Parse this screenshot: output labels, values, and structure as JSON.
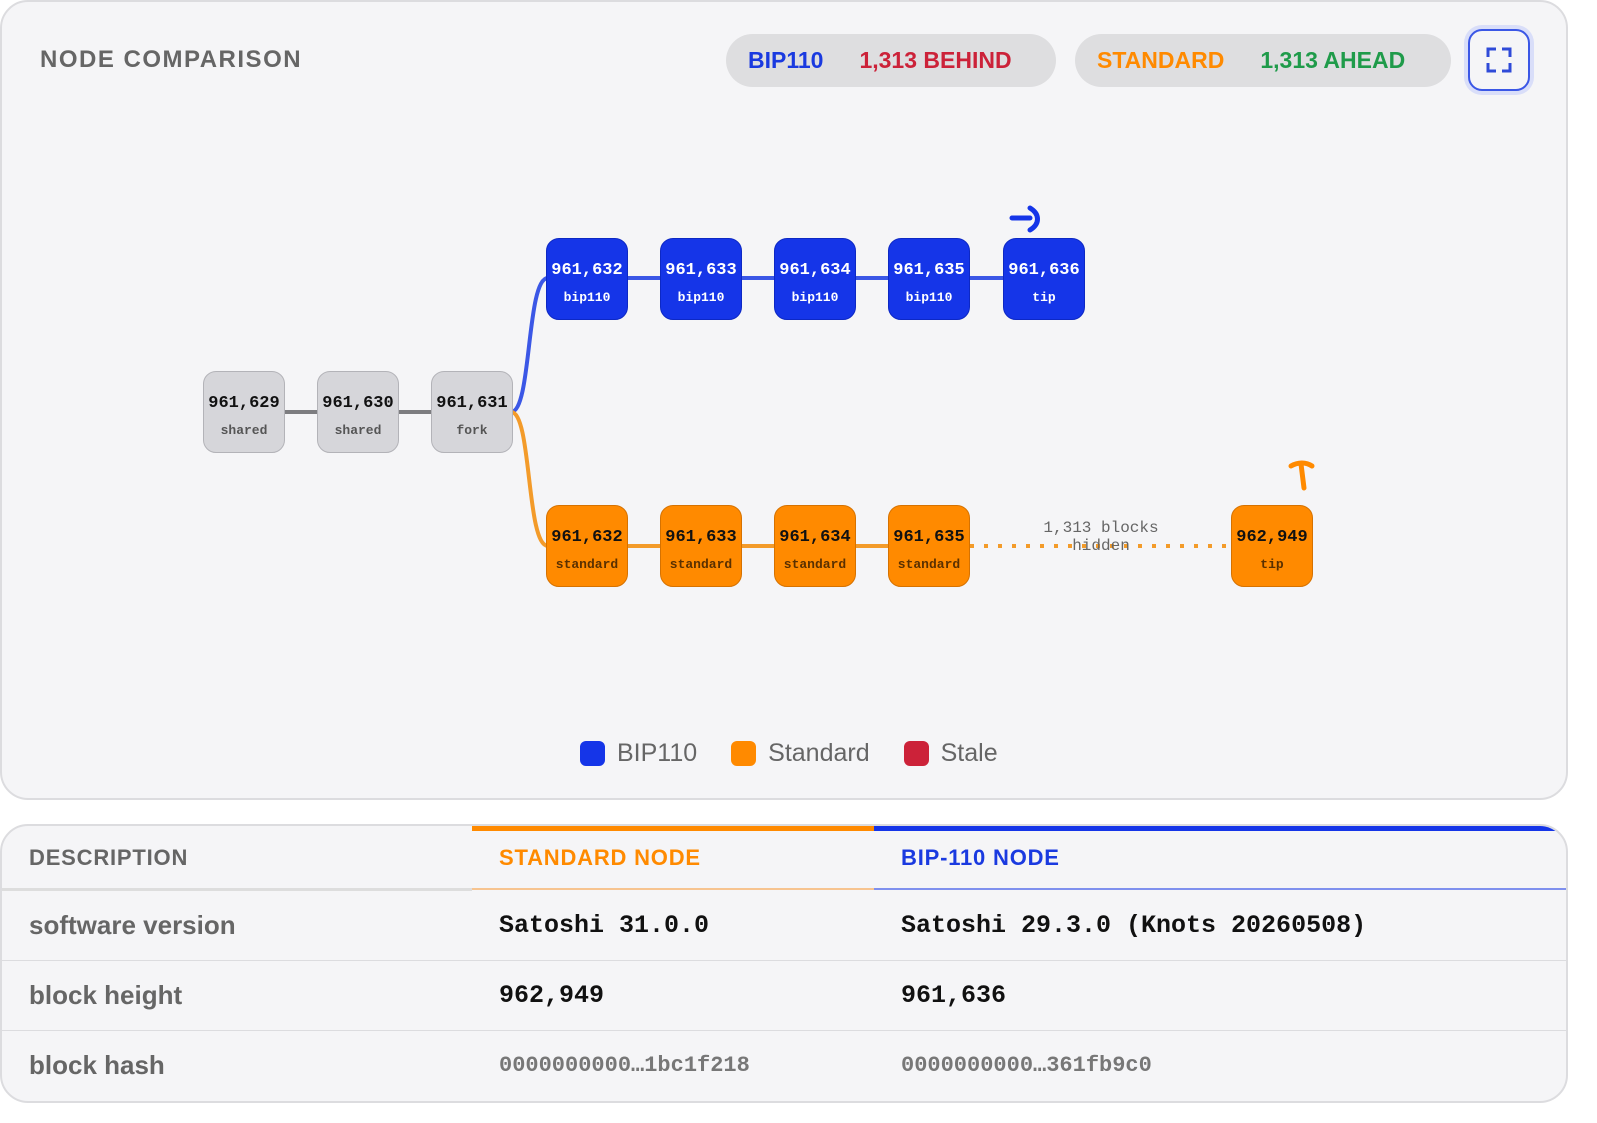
{
  "header": {
    "title": "NODE COMPARISON",
    "badges": [
      {
        "name": "BIP110",
        "status": "1,313 BEHIND"
      },
      {
        "name": "STANDARD",
        "status": "1,313 AHEAD"
      }
    ]
  },
  "diagram": {
    "shared_chain": [
      {
        "height": "961,629",
        "tag": "shared"
      },
      {
        "height": "961,630",
        "tag": "shared"
      },
      {
        "height": "961,631",
        "tag": "fork"
      }
    ],
    "bip110_chain": [
      {
        "height": "961,632",
        "tag": "bip110"
      },
      {
        "height": "961,633",
        "tag": "bip110"
      },
      {
        "height": "961,634",
        "tag": "bip110"
      },
      {
        "height": "961,635",
        "tag": "bip110"
      },
      {
        "height": "961,636",
        "tag": "tip"
      }
    ],
    "standard_chain": [
      {
        "height": "961,632",
        "tag": "standard"
      },
      {
        "height": "961,633",
        "tag": "standard"
      },
      {
        "height": "961,634",
        "tag": "standard"
      },
      {
        "height": "961,635",
        "tag": "standard"
      }
    ],
    "hidden_note": "1,313 blocks hidden",
    "standard_tip": {
      "height": "962,949",
      "tag": "tip"
    }
  },
  "legend": [
    "BIP110",
    "Standard",
    "Stale"
  ],
  "table": {
    "headers": [
      "DESCRIPTION",
      "STANDARD NODE",
      "BIP-110 NODE"
    ],
    "rows": [
      [
        "software version",
        "Satoshi 31.0.0",
        "Satoshi 29.3.0 (Knots 20260508)"
      ],
      [
        "block height",
        "962,949",
        "961,636"
      ],
      [
        "block hash",
        "0000000000…1bc1f218",
        "0000000000…361fb9c0"
      ]
    ]
  }
}
